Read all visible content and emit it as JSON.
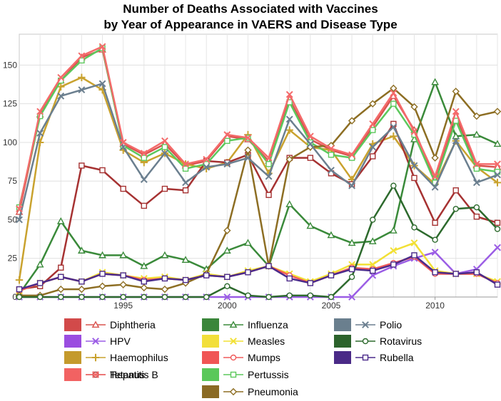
{
  "chart_data": {
    "type": "line",
    "title_line1": "Number of Deaths Associated with Vaccines",
    "title_line2": "by Year of Appearance in VAERS and Disease Type",
    "xlabel": "",
    "ylabel": "",
    "xlim": [
      1990,
      2013
    ],
    "ylim": [
      0,
      170
    ],
    "x_ticks": [
      1995,
      2000,
      2005,
      2010
    ],
    "y_ticks": [
      0,
      25,
      50,
      75,
      100,
      125,
      150
    ],
    "grid": true,
    "legend_position": "bottom",
    "x": [
      1990,
      1991,
      1992,
      1993,
      1994,
      1995,
      1996,
      1997,
      1998,
      1999,
      2000,
      2001,
      2002,
      2003,
      2004,
      2005,
      2006,
      2007,
      2008,
      2009,
      2010,
      2011,
      2012,
      2013
    ],
    "series": [
      {
        "name": "Diphtheria",
        "color": "#d9534f",
        "fill": "#d24a4a",
        "marker": "triangle",
        "values": [
          55,
          118,
          140,
          155,
          160,
          99,
          92,
          99,
          85,
          88,
          104,
          102,
          88,
          128,
          102,
          95,
          91,
          110,
          130,
          108,
          76,
          117,
          85,
          84
        ]
      },
      {
        "name": "HPV",
        "color": "#9b5de5",
        "fill": "#9a4de0",
        "marker": "x",
        "values": [
          0,
          0,
          0,
          0,
          0,
          0,
          0,
          0,
          0,
          0,
          0,
          0,
          0,
          0,
          0,
          0,
          0,
          14,
          20,
          25,
          29,
          15,
          18,
          32
        ]
      },
      {
        "name": "Haemophilus",
        "color": "#c9a22e",
        "fill": "#c49a2c",
        "marker": "plus",
        "values": [
          11,
          100,
          136,
          142,
          134,
          95,
          87,
          93,
          86,
          83,
          87,
          105,
          80,
          108,
          97,
          95,
          76,
          99,
          104,
          85,
          73,
          101,
          84,
          74
        ]
      },
      {
        "name": "Hepatitis B",
        "color": "#a63232",
        "fill": "#9b3131",
        "marker": "square",
        "values": [
          5,
          7,
          19,
          85,
          82,
          70,
          59,
          70,
          69,
          88,
          87,
          92,
          66,
          90,
          90,
          80,
          73,
          91,
          112,
          77,
          48,
          69,
          52,
          48
        ]
      },
      {
        "name": "Influenza",
        "color": "#3a8a3a",
        "fill": "#3b863b",
        "marker": "triangle",
        "values": [
          2,
          21,
          49,
          30,
          27,
          27,
          20,
          27,
          24,
          18,
          30,
          35,
          20,
          60,
          46,
          40,
          35,
          36,
          43,
          102,
          139,
          104,
          105,
          99
        ]
      },
      {
        "name": "Measles",
        "color": "#f2e035",
        "fill": "#f2df3a",
        "marker": "x",
        "values": [
          4,
          9,
          13,
          10,
          16,
          14,
          12,
          13,
          11,
          15,
          13,
          17,
          20,
          15,
          10,
          15,
          21,
          21,
          30,
          35,
          17,
          15,
          15,
          10
        ]
      },
      {
        "name": "Mumps",
        "color": "#f05a5a",
        "fill": "#f05555",
        "marker": "circle",
        "values": [
          4,
          9,
          13,
          10,
          15,
          14,
          11,
          12,
          11,
          14,
          13,
          16,
          20,
          14,
          9,
          14,
          19,
          18,
          22,
          26,
          15,
          15,
          15,
          9
        ]
      },
      {
        "name": "Pertussis",
        "color": "#5cc85c",
        "fill": "#5ac85a",
        "marker": "square",
        "values": [
          58,
          117,
          140,
          153,
          161,
          98,
          90,
          97,
          83,
          86,
          101,
          103,
          86,
          126,
          100,
          92,
          90,
          108,
          125,
          105,
          74,
          114,
          83,
          81
        ]
      },
      {
        "name": "Pneumonia",
        "color": "#8d6e23",
        "fill": "#8a6a24",
        "marker": "diamond",
        "values": [
          1,
          1,
          5,
          5,
          7,
          8,
          6,
          5,
          9,
          15,
          43,
          95,
          20,
          89,
          97,
          98,
          114,
          125,
          135,
          123,
          90,
          133,
          117,
          120
        ]
      },
      {
        "name": "Polio",
        "color": "#6b7f8f",
        "fill": "#6a7f8e",
        "marker": "x",
        "values": [
          50,
          106,
          130,
          134,
          138,
          97,
          76,
          93,
          74,
          84,
          86,
          90,
          78,
          115,
          99,
          82,
          72,
          97,
          110,
          85,
          71,
          101,
          74,
          79
        ]
      },
      {
        "name": "Rotavirus",
        "color": "#2d6a2d",
        "fill": "#2c632c",
        "marker": "circle",
        "values": [
          0,
          0,
          0,
          0,
          0,
          0,
          0,
          0,
          0,
          0,
          7,
          1,
          0,
          1,
          1,
          0,
          13,
          50,
          72,
          45,
          37,
          57,
          58,
          44
        ]
      },
      {
        "name": "Rubella",
        "color": "#4b2a8a",
        "fill": "#4a2a87",
        "marker": "square",
        "values": [
          5,
          9,
          13,
          10,
          15,
          14,
          10,
          12,
          11,
          14,
          13,
          16,
          20,
          12,
          9,
          14,
          18,
          17,
          21,
          27,
          16,
          15,
          16,
          8
        ]
      },
      {
        "name": "Tetanus",
        "color": "#f46a6a",
        "fill": "#f26262",
        "marker": "x",
        "values": [
          57,
          120,
          142,
          156,
          162,
          100,
          93,
          101,
          86,
          89,
          105,
          103,
          90,
          131,
          104,
          96,
          92,
          112,
          132,
          107,
          78,
          120,
          86,
          86
        ]
      }
    ]
  }
}
